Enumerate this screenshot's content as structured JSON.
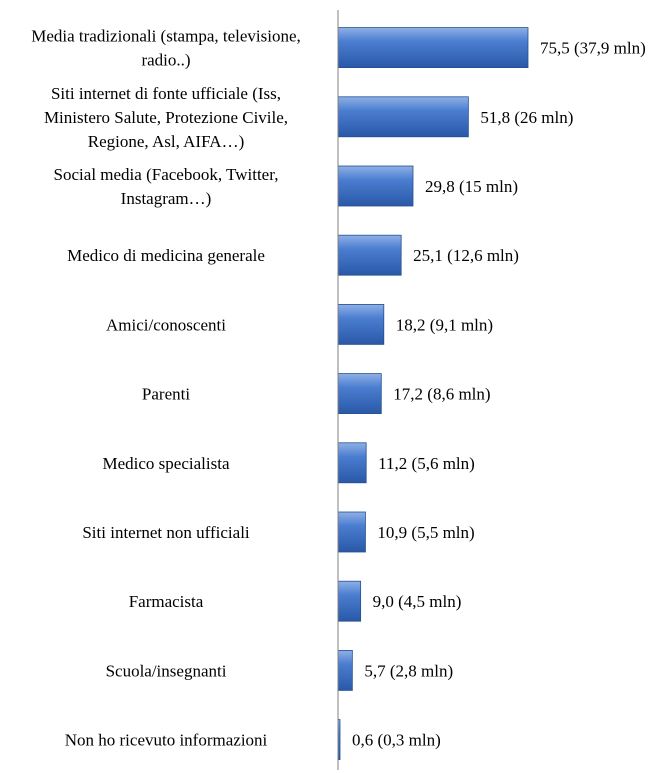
{
  "chart_data": {
    "type": "bar",
    "orientation": "horizontal",
    "title": "",
    "xlabel": "",
    "ylabel": "",
    "xlim": [
      0,
      85
    ],
    "grid": false,
    "legend": "none",
    "bar_color": "#3F72C4",
    "categories": [
      [
        "Media tradizionali (stampa, televisione,",
        "radio..)"
      ],
      [
        "Siti internet di fonte ufficiale (Iss,",
        "Ministero Salute, Protezione Civile,",
        "Regione, Asl, AIFA…)"
      ],
      [
        "Social media (Facebook, Twitter,",
        "Instagram…)"
      ],
      [
        "Medico di medicina generale"
      ],
      [
        "Amici/conoscenti"
      ],
      [
        "Parenti"
      ],
      [
        "Medico specialista"
      ],
      [
        "Siti internet non ufficiali"
      ],
      [
        "Farmacista"
      ],
      [
        "Scuola/insegnanti"
      ],
      [
        "Non ho ricevuto informazioni"
      ]
    ],
    "values": [
      75.5,
      51.8,
      29.8,
      25.1,
      18.2,
      17.2,
      11.2,
      10.9,
      9.0,
      5.7,
      0.6
    ],
    "value_labels": [
      "75,5 (37,9 mln)",
      "51,8 (26 mln)",
      "29,8 (15 mln)",
      "25,1 (12,6 mln)",
      "18,2 (9,1 mln)",
      "17,2 (8,6 mln)",
      "11,2 (5,6 mln)",
      "10,9 (5,5 mln)",
      "9,0 (4,5 mln)",
      "5,7 (2,8 mln)",
      "0,6 (0,3 mln)"
    ]
  }
}
